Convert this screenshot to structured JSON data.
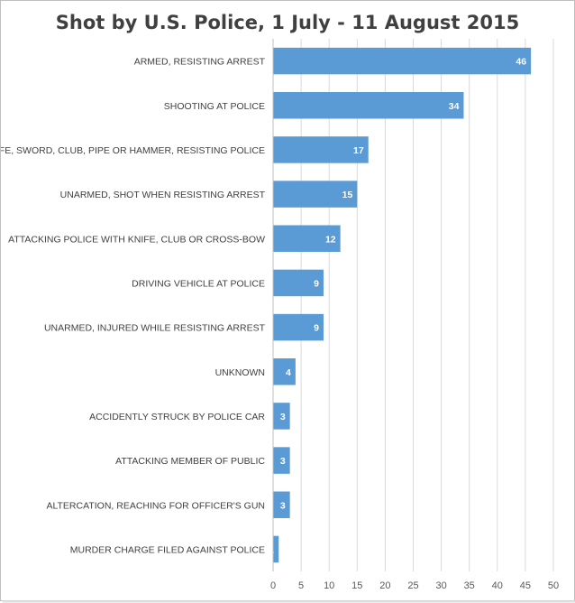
{
  "chart_data": {
    "type": "bar",
    "orientation": "horizontal",
    "title": "Shot by U.S. Police, 1 July - 11 August 2015",
    "categories": [
      "ARMED, RESISTING ARREST",
      "SHOOTING AT POLICE",
      "KNIFE, SWORD, CLUB, PIPE OR HAMMER, RESISTING POLICE",
      "UNARMED, SHOT WHEN RESISTING ARREST",
      "ATTACKING POLICE WITH KNIFE, CLUB OR CROSS-BOW",
      "DRIVING VEHICLE AT POLICE",
      "UNARMED, INJURED WHILE RESISTING ARREST",
      "UNKNOWN",
      "ACCIDENTLY STRUCK BY POLICE CAR",
      "ATTACKING MEMBER OF PUBLIC",
      "ALTERCATION, REACHING FOR OFFICER'S GUN",
      "MURDER CHARGE FILED AGAINST POLICE"
    ],
    "values": [
      46,
      34,
      17,
      15,
      12,
      9,
      9,
      4,
      3,
      3,
      3,
      1
    ],
    "xlim": [
      0,
      50
    ],
    "xticks": [
      0,
      5,
      10,
      15,
      20,
      25,
      30,
      35,
      40,
      45,
      50
    ],
    "grid": "vertical",
    "legend": "none",
    "bar_color": "#5B9BD5",
    "data_labels": true
  }
}
